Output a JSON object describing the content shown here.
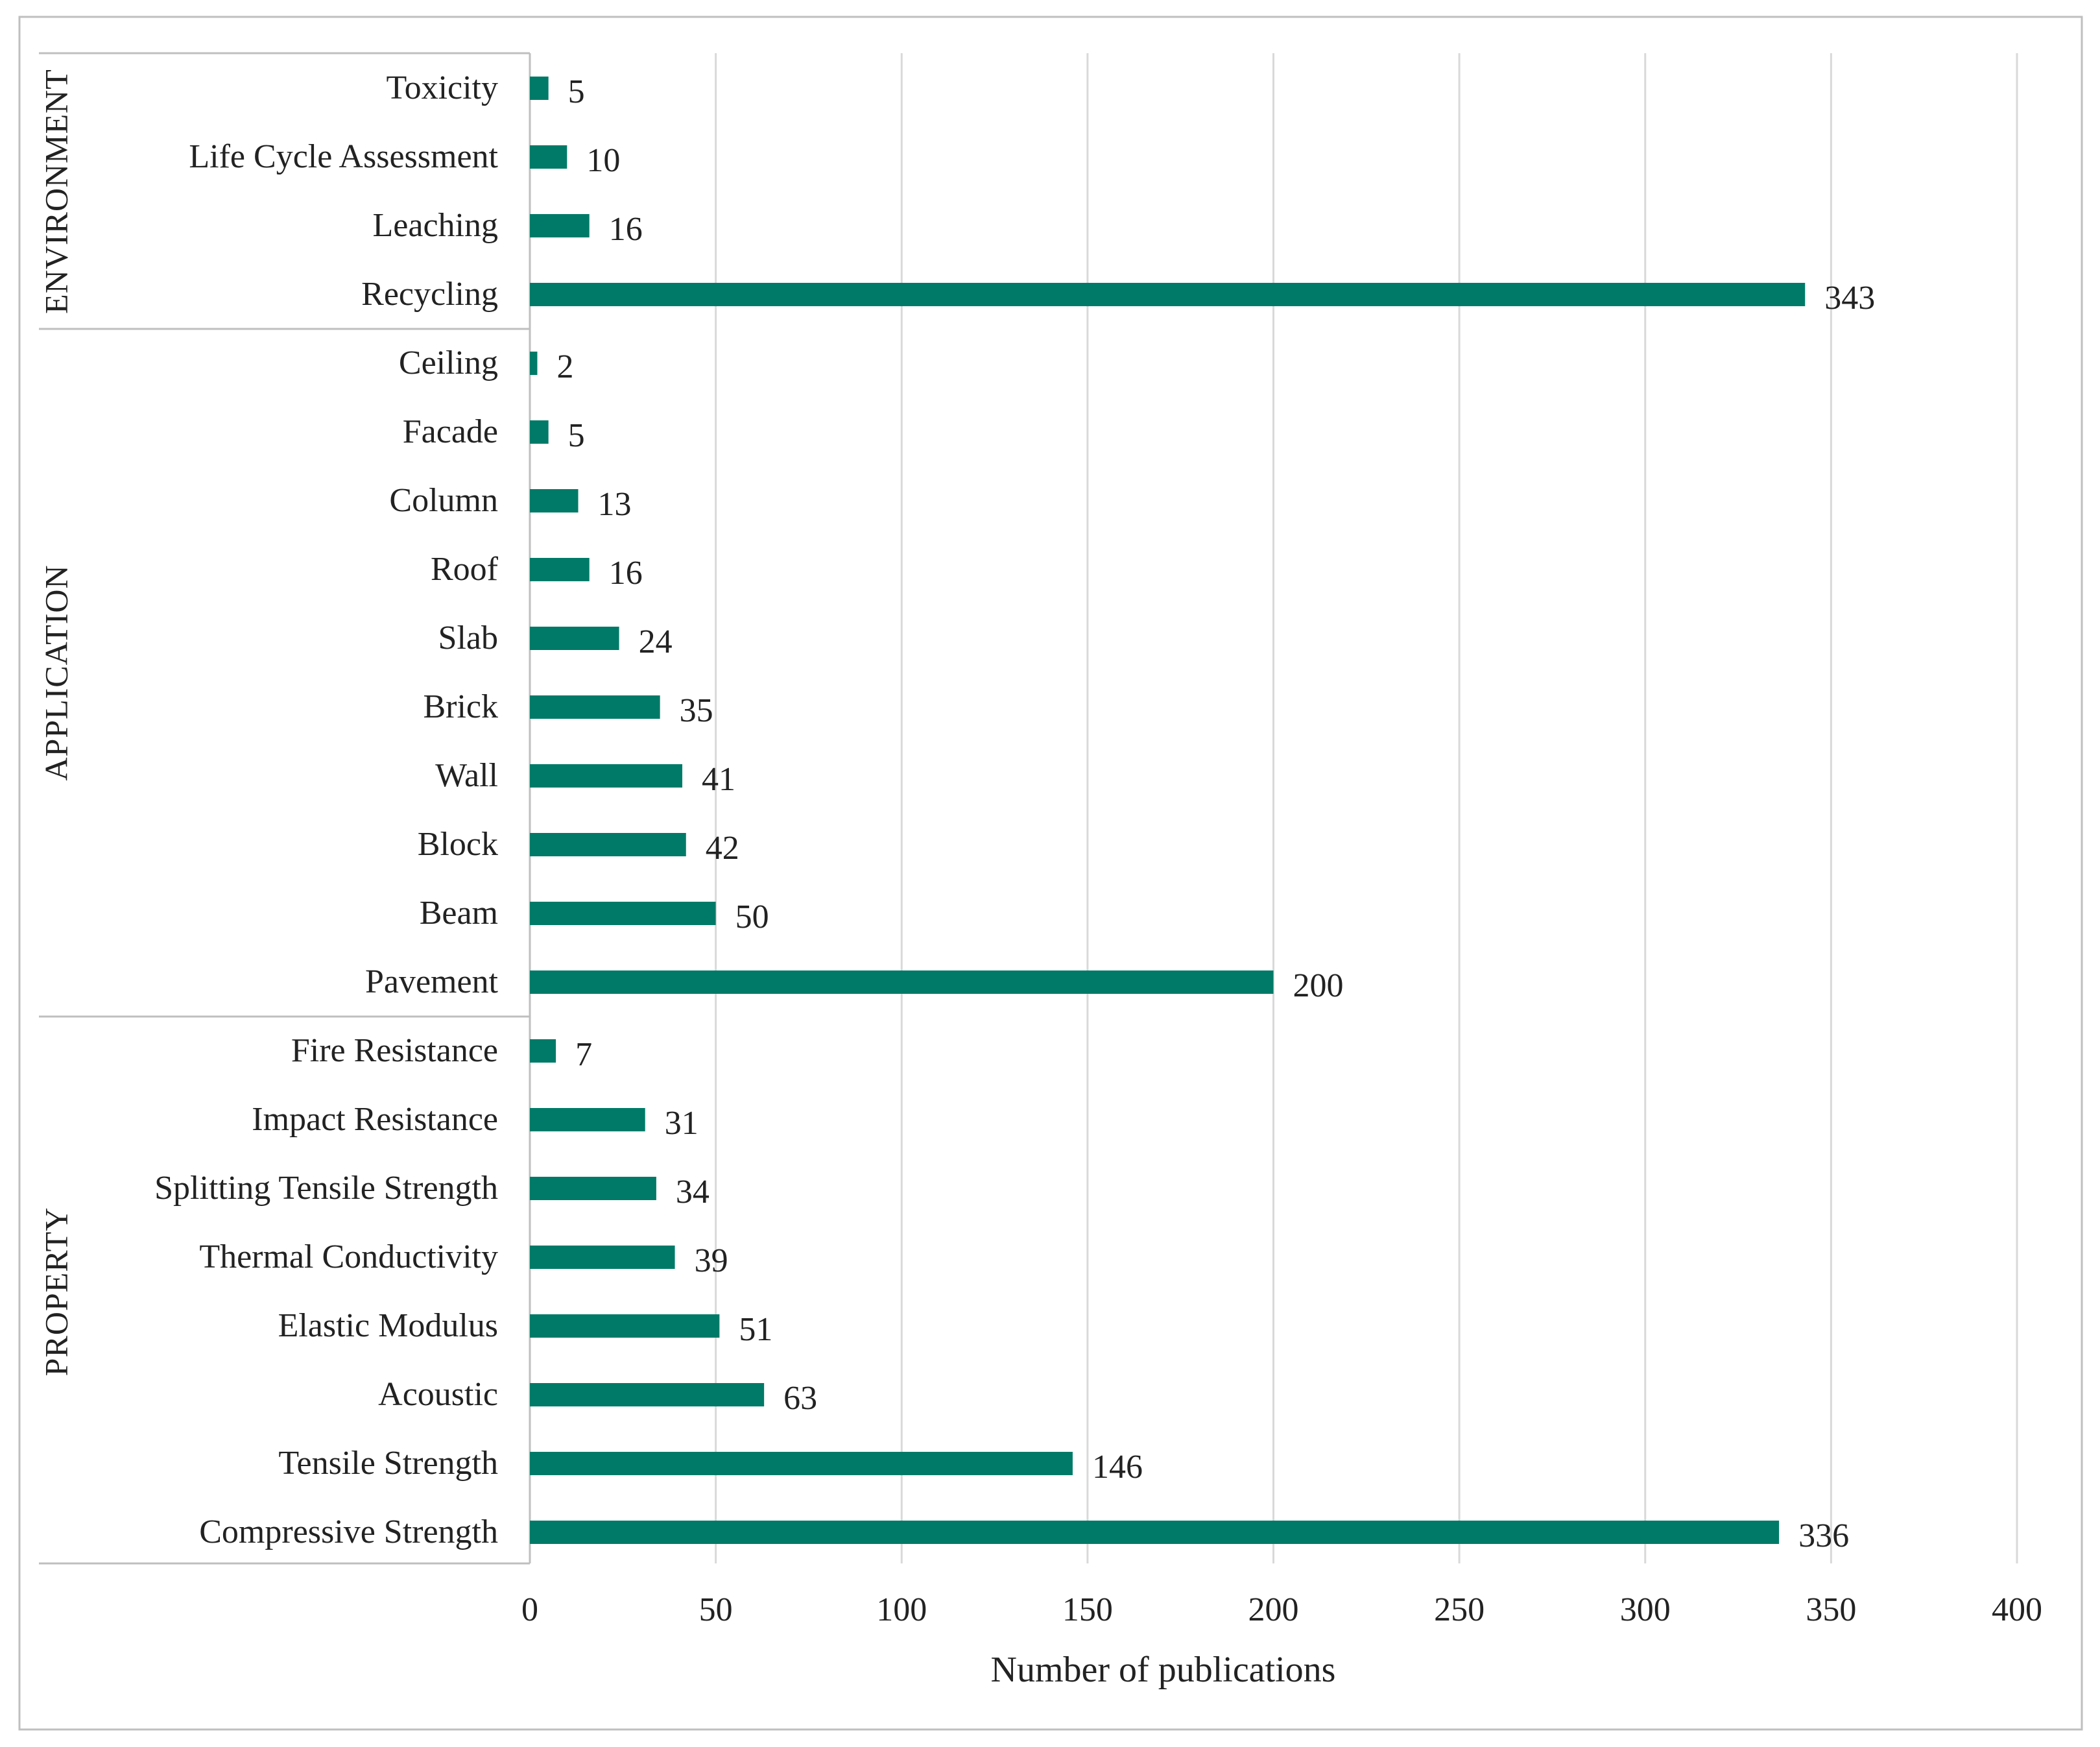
{
  "colors": {
    "bar": "#007A68",
    "grid": "#D9D9D9",
    "frame": "#BFBFBF",
    "text": "#222222"
  },
  "chart_data": {
    "type": "bar",
    "orientation": "horizontal",
    "xlabel": "Number of publications",
    "ylabel": "",
    "xlim": [
      0,
      400
    ],
    "xticks": [
      0,
      50,
      100,
      150,
      200,
      250,
      300,
      350,
      400
    ],
    "gridlines": true,
    "data_labels": true,
    "groups": [
      {
        "name": "ENVIRONMENT",
        "categories": [
          "Toxicity",
          "Life Cycle Assessment",
          "Leaching",
          "Recycling"
        ],
        "values": [
          5,
          10,
          16,
          343
        ]
      },
      {
        "name": "APPLICATION",
        "categories": [
          "Ceiling",
          "Facade",
          "Column",
          "Roof",
          "Slab",
          "Brick",
          "Wall",
          "Block",
          "Beam",
          "Pavement"
        ],
        "values": [
          2,
          5,
          13,
          16,
          24,
          35,
          41,
          42,
          50,
          200
        ]
      },
      {
        "name": "PROPERTY",
        "categories": [
          "Fire Resistance",
          "Impact Resistance",
          "Splitting Tensile Strength",
          "Thermal Conductivity",
          "Elastic Modulus",
          "Acoustic",
          "Tensile Strength",
          "Compressive Strength"
        ],
        "values": [
          7,
          31,
          34,
          39,
          51,
          63,
          146,
          336
        ]
      }
    ]
  }
}
